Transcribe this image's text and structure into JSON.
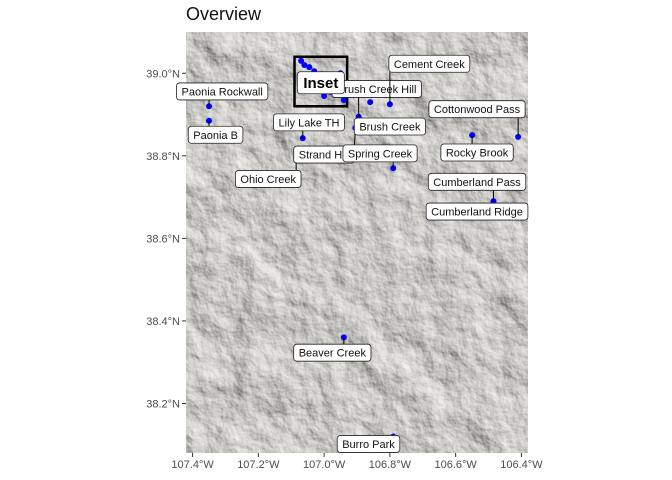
{
  "title": "Overview",
  "chart_data": {
    "type": "scatter",
    "title": "Overview",
    "xlabel": "",
    "ylabel": "",
    "xlim": [
      -107.42,
      -106.38
    ],
    "ylim": [
      38.08,
      39.1
    ],
    "x_ticks": [
      {
        "value": -107.4,
        "label": "107.4°W"
      },
      {
        "value": -107.2,
        "label": "107.2°W"
      },
      {
        "value": -107.0,
        "label": "107.0°W"
      },
      {
        "value": -106.8,
        "label": "106.8°W"
      },
      {
        "value": -106.6,
        "label": "106.6°W"
      },
      {
        "value": -106.4,
        "label": "106.4°W"
      }
    ],
    "y_ticks": [
      {
        "value": 39.0,
        "label": "39.0°N"
      },
      {
        "value": 38.8,
        "label": "38.8°N"
      },
      {
        "value": 38.6,
        "label": "38.6°N"
      },
      {
        "value": 38.4,
        "label": "38.4°N"
      },
      {
        "value": 38.2,
        "label": "38.2°N"
      }
    ],
    "point_color": "#0000ff",
    "inset_box": {
      "label": "Inset",
      "lon": [
        -107.09,
        -106.93
      ],
      "lat": [
        38.92,
        39.04
      ]
    },
    "labeled_sites": [
      {
        "name": "Paonia Rockwall",
        "lon": -107.35,
        "lat": 38.92,
        "label_lon": -107.31,
        "label_lat": 38.956
      },
      {
        "name": "Paonia B",
        "lon": -107.35,
        "lat": 38.885,
        "label_lon": -107.33,
        "label_lat": 38.851
      },
      {
        "name": "Lily Lake TH",
        "lon": -107.065,
        "lat": 38.843,
        "label_lon": -107.046,
        "label_lat": 38.881
      },
      {
        "name": "Ohio Creek",
        "lon": -107.085,
        "lat": 38.795,
        "label_lon": -107.17,
        "label_lat": 38.744
      },
      {
        "name": "Strand Hill",
        "lon": -106.905,
        "lat": 38.868,
        "label_lon": -107.0,
        "label_lat": 38.803
      },
      {
        "name": "Brush Creek Hill",
        "lon": -106.895,
        "lat": 38.895,
        "label_lon": -106.84,
        "label_lat": 38.962
      },
      {
        "name": "Cement Creek",
        "lon": -106.8,
        "lat": 38.925,
        "label_lon": -106.68,
        "label_lat": 39.023
      },
      {
        "name": "Brush Creek",
        "lon": -106.88,
        "lat": 38.878,
        "label_lon": -106.8,
        "label_lat": 38.871
      },
      {
        "name": "Spring Creek",
        "lon": -106.79,
        "lat": 38.77,
        "label_lon": -106.83,
        "label_lat": 38.806
      },
      {
        "name": "Cottonwood Pass",
        "lon": -106.41,
        "lat": 38.846,
        "label_lon": -106.535,
        "label_lat": 38.913
      },
      {
        "name": "Rocky Brook",
        "lon": -106.55,
        "lat": 38.85,
        "label_lon": -106.535,
        "label_lat": 38.808
      },
      {
        "name": "Cumberland Pass",
        "lon": -106.485,
        "lat": 38.69,
        "label_lon": -106.535,
        "label_lat": 38.737
      },
      {
        "name": "Cumberland Ridge",
        "lon": -106.485,
        "lat": 38.69,
        "label_lon": -106.535,
        "label_lat": 38.665
      },
      {
        "name": "Beaver Creek",
        "lon": -106.94,
        "lat": 38.36,
        "label_lon": -106.975,
        "label_lat": 38.323
      },
      {
        "name": "Burro Park",
        "lon": -106.79,
        "lat": 38.12,
        "label_lon": -106.865,
        "label_lat": 38.102
      }
    ],
    "cluster_points": [
      {
        "lon": -107.07,
        "lat": 39.03
      },
      {
        "lon": -107.06,
        "lat": 39.02
      },
      {
        "lon": -107.045,
        "lat": 39.015
      },
      {
        "lon": -107.03,
        "lat": 39.005
      },
      {
        "lon": -107.02,
        "lat": 38.99
      },
      {
        "lon": -107.01,
        "lat": 38.975
      },
      {
        "lon": -106.995,
        "lat": 38.96
      },
      {
        "lon": -107.0,
        "lat": 38.945
      },
      {
        "lon": -106.98,
        "lat": 38.955
      },
      {
        "lon": -106.95,
        "lat": 39.0
      },
      {
        "lon": -106.96,
        "lat": 38.975
      },
      {
        "lon": -106.94,
        "lat": 38.935
      }
    ],
    "extra_points": [
      {
        "lon": -106.86,
        "lat": 38.93
      },
      {
        "lon": -106.93,
        "lat": 38.965
      }
    ]
  }
}
